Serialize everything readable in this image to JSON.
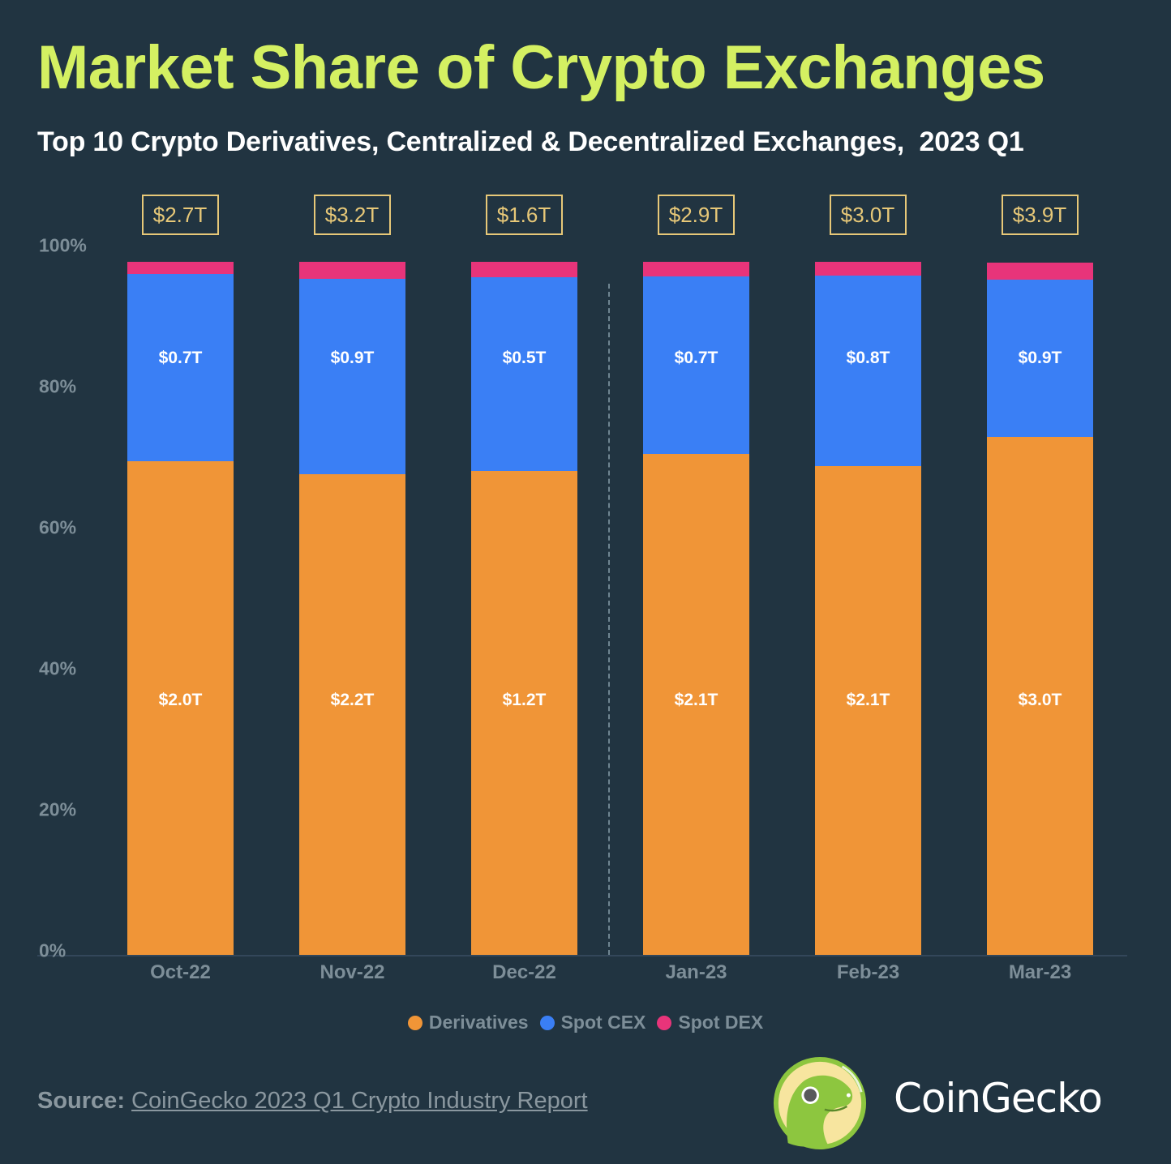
{
  "header": {
    "title": "Market Share of Crypto Exchanges",
    "subtitle": "Top 10 Crypto Derivatives, Centralized & Decentralized Exchanges,  2023 Q1"
  },
  "colors": {
    "background": "#213441",
    "title": "#d4f062",
    "derivatives": "#f09537",
    "spot_cex": "#3a7ff5",
    "spot_dex": "#e8347a",
    "total_box": "#e7c878",
    "axis_text": "#7d8e98"
  },
  "y_ticks": [
    "100%",
    "80%",
    "60%",
    "40%",
    "20%",
    "0%"
  ],
  "legend": [
    {
      "label": "Derivatives",
      "color": "#f09537"
    },
    {
      "label": "Spot CEX",
      "color": "#3a7ff5"
    },
    {
      "label": "Spot DEX",
      "color": "#e8347a"
    }
  ],
  "footer": {
    "source_label": "Source:",
    "source_link": "CoinGecko 2023 Q1 Crypto Industry Report",
    "brand": "CoinGecko"
  },
  "chart_data": {
    "type": "bar",
    "stacked": true,
    "title": "Market Share of Crypto Exchanges",
    "subtitle": "Top 10 Crypto Derivatives, Centralized & Decentralized Exchanges,  2023 Q1",
    "xlabel": "",
    "ylabel": "",
    "ylim": [
      0,
      100
    ],
    "categories": [
      "Oct-22",
      "Nov-22",
      "Dec-22",
      "Jan-23",
      "Feb-23",
      "Mar-23"
    ],
    "totals": [
      "$2.7T",
      "$3.2T",
      "$1.6T",
      "$2.9T",
      "$3.0T",
      "$3.9T"
    ],
    "series": [
      {
        "name": "Derivatives",
        "values": [
          70.0,
          68.2,
          68.6,
          71.0,
          69.3,
          73.4
        ],
        "labels": [
          "$2.0T",
          "$2.2T",
          "$1.2T",
          "$2.1T",
          "$2.1T",
          "$3.0T"
        ]
      },
      {
        "name": "Spot CEX",
        "values": [
          26.6,
          27.7,
          27.5,
          25.2,
          27.0,
          22.4
        ],
        "labels": [
          "$0.7T",
          "$0.9T",
          "$0.5T",
          "$0.7T",
          "$0.8T",
          "$0.9T"
        ]
      },
      {
        "name": "Spot DEX",
        "values": [
          1.7,
          2.4,
          2.2,
          2.1,
          2.0,
          2.4
        ],
        "labels": [
          "",
          "",
          "",
          "",
          "",
          ""
        ]
      }
    ],
    "annotations": [
      "Dashed vertical divider between Dec-22 and Jan-23"
    ],
    "legend_position": "bottom",
    "grid": false
  }
}
